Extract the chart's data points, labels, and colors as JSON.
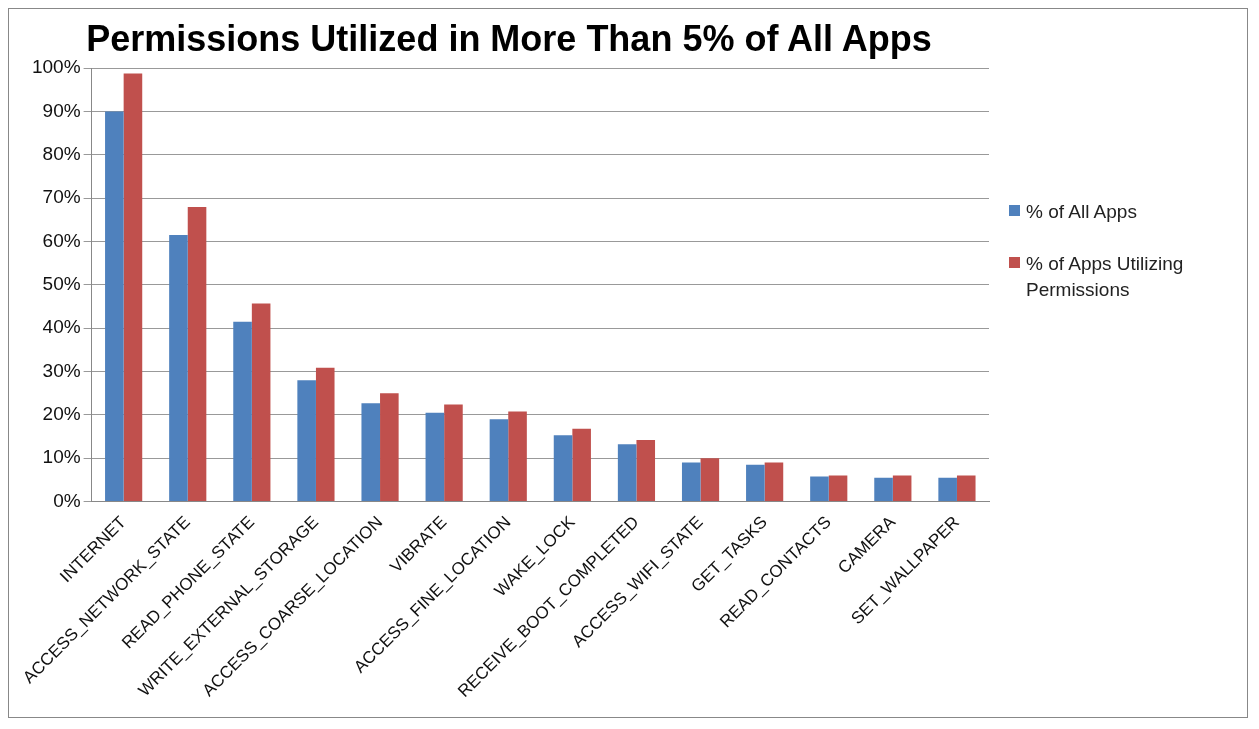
{
  "chart_data": {
    "type": "bar",
    "title": "Permissions Utilized in More Than 5% of All Apps",
    "categories": [
      "INTERNET",
      "ACCESS_NETWORK_STATE",
      "READ_PHONE_STATE",
      "WRITE_EXTERNAL_STORAGE",
      "ACCESS_COARSE_LOCATION",
      "VIBRATE",
      "ACCESS_FINE_LOCATION",
      "WAKE_LOCK",
      "RECEIVE_BOOT_COMPLETED",
      "ACCESS_WIFI_STATE",
      "GET_TASKS",
      "READ_CONTACTS",
      "CAMERA",
      "SET_WALLPAPER"
    ],
    "series": [
      {
        "name": "% of All Apps",
        "color": "#4f81bd",
        "values": [
          90,
          61.5,
          41.5,
          28,
          22.7,
          20.5,
          19,
          15.3,
          13.2,
          9,
          8.5,
          5.8,
          5.5,
          5.5
        ]
      },
      {
        "name": "% of Apps Utilizing Permissions",
        "color": "#c0504d",
        "values": [
          98.8,
          68,
          45.7,
          30.9,
          25,
          22.4,
          20.8,
          16.8,
          14.2,
          10,
          9,
          6,
          6,
          6
        ]
      }
    ],
    "ylim": [
      0,
      100
    ],
    "yticks": [
      {
        "value": 0,
        "label": "0%"
      },
      {
        "value": 10,
        "label": "10%"
      },
      {
        "value": 20,
        "label": "20%"
      },
      {
        "value": 30,
        "label": "30%"
      },
      {
        "value": 40,
        "label": "40%"
      },
      {
        "value": 50,
        "label": "50%"
      },
      {
        "value": 60,
        "label": "60%"
      },
      {
        "value": 70,
        "label": "70%"
      },
      {
        "value": 80,
        "label": "80%"
      },
      {
        "value": 90,
        "label": "90%"
      },
      {
        "value": 100,
        "label": "100%"
      }
    ],
    "grid": "y",
    "legend": "right"
  }
}
